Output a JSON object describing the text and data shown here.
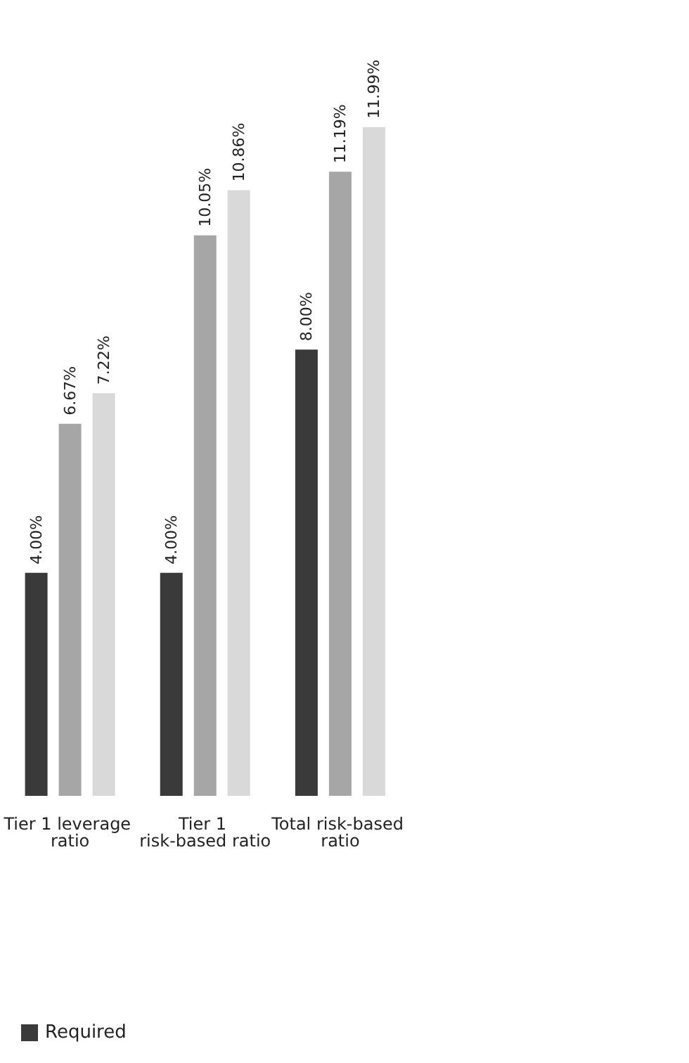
{
  "chart_data": {
    "type": "bar",
    "categories": [
      "Tier 1 leverage ratio",
      "Tier 1 risk-based ratio",
      "Total risk-based ratio"
    ],
    "series": [
      {
        "name": "Required",
        "color": "#3a3a3a",
        "values": [
          4.0,
          4.0,
          8.0
        ],
        "value_labels": [
          "4.00%",
          "4.00%",
          "8.00%"
        ]
      },
      {
        "color": "#a6a6a6",
        "values": [
          6.67,
          10.05,
          11.19
        ],
        "value_labels": [
          "6.67%",
          "10.05%",
          "11.19%"
        ]
      },
      {
        "color": "#d9d9d9",
        "values": [
          7.22,
          10.86,
          11.99
        ],
        "value_labels": [
          "7.22%",
          "10.86%",
          "11.99%"
        ]
      }
    ],
    "legend": "bottom left"
  }
}
